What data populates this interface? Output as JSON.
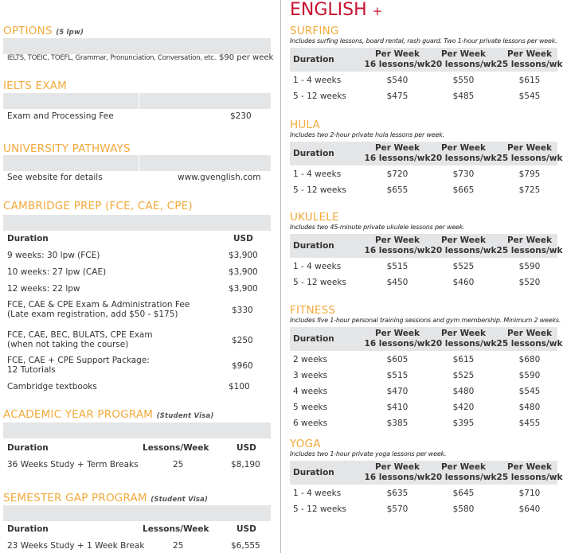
{
  "title": "ENGLISH",
  "title_plus": "+",
  "options": {
    "heading": "OPTIONS",
    "note": "(5 lpw)",
    "desc": "IELTS, TOEIC, TOEFL, Grammar, Pronunciation, Conversation, etc.",
    "price": "$90 per week"
  },
  "ielts": {
    "heading": "IELTS EXAM",
    "label": "Exam and Processing Fee",
    "price": "$230"
  },
  "pathways": {
    "heading": "UNIVERSITY PATHWAYS",
    "label": "See website for details",
    "link": "www.gvenglish.com"
  },
  "cambridge": {
    "heading": "CAMBRIDGE PREP (FCE, CAE, CPE)",
    "col1": "Duration",
    "col2": "USD",
    "rows": [
      {
        "label": "9 weeks: 30 lpw (FCE)",
        "price": "$3,900"
      },
      {
        "label": "10 weeks: 27 lpw (CAE)",
        "price": "$3,900"
      },
      {
        "label": "12 weeks: 22 lpw",
        "price": "$3,900"
      },
      {
        "label": "FCE, CAE & CPE Exam & Administration Fee",
        "label2": "(Late exam registration, add $50 - $175)",
        "price": "$330"
      },
      {
        "label": "FCE, CAE, BEC, BULATS, CPE Exam",
        "label2": "(when not taking the course)",
        "price": "$250"
      },
      {
        "label": "FCE, CAE + CPE Support Package:",
        "label2": "12 Tutorials",
        "price": "$960"
      },
      {
        "label": "Cambridge textbooks",
        "price": "$100"
      }
    ]
  },
  "academic": {
    "heading": "ACADEMIC YEAR PROGRAM",
    "note": "(Student Visa)",
    "col1": "Duration",
    "col2": "Lessons/Week",
    "col3": "USD",
    "row": {
      "label": "36 Weeks Study + Term Breaks",
      "lessons": "25",
      "price": "$8,190"
    }
  },
  "semester": {
    "heading": "SEMESTER GAP PROGRAM",
    "note": "(Student Visa)",
    "col1": "Duration",
    "col2": "Lessons/Week",
    "col3": "USD",
    "row": {
      "label": "23 Weeks Study + 1 Week Break",
      "lessons": "25",
      "price": "$6,555"
    }
  },
  "columns": {
    "duration": "Duration",
    "per_week": "Per Week",
    "c16": "16 lessons/wk",
    "c20": "20 lessons/wk",
    "c25": "25 lessons/wk"
  },
  "programs": [
    {
      "name": "SURFING",
      "desc": "Includes surfing lessons, board rental, rash guard. Two 1-hour private lessons per week.",
      "rows": [
        [
          "1 - 4 weeks",
          "$540",
          "$550",
          "$615"
        ],
        [
          "5 - 12 weeks",
          "$475",
          "$485",
          "$545"
        ]
      ]
    },
    {
      "name": "HULA",
      "desc": "Includes two 2-hour private hula lessons per week.",
      "rows": [
        [
          "1 - 4 weeks",
          "$720",
          "$730",
          "$795"
        ],
        [
          "5  - 12 weeks",
          "$655",
          "$665",
          "$725"
        ]
      ]
    },
    {
      "name": "UKULELE",
      "desc": "Includes two 45-minute private ukulele lessons per week.",
      "rows": [
        [
          "1 - 4  weeks",
          "$515",
          "$525",
          "$590"
        ],
        [
          "5  - 12 weeks",
          "$450",
          "$460",
          "$520"
        ]
      ]
    },
    {
      "name": "FITNESS",
      "desc": "Includes five 1-hour personal training sessions and gym membership. Minimum 2 weeks.",
      "rows": [
        [
          "2 weeks",
          "$605",
          "$615",
          "$680"
        ],
        [
          "3 weeks",
          "$515",
          "$525",
          "$590"
        ],
        [
          "4 weeks",
          "$470",
          "$480",
          "$545"
        ],
        [
          "5 weeks",
          "$410",
          "$420",
          "$480"
        ],
        [
          "6 weeks",
          "$385",
          "$395",
          "$455"
        ]
      ]
    },
    {
      "name": "YOGA",
      "desc": "Includes two 1-hour private yoga lessons per week.",
      "rows": [
        [
          "1 - 4 weeks",
          "$635",
          "$645",
          "$710"
        ],
        [
          "5  - 12 weeks",
          "$570",
          "$580",
          "$640"
        ]
      ]
    }
  ]
}
